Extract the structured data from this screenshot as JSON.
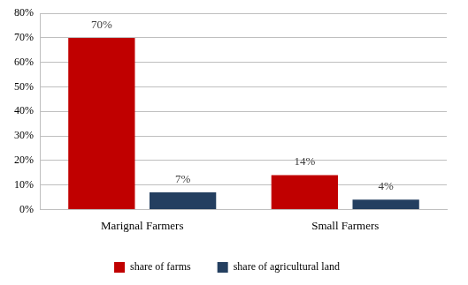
{
  "chart_data": {
    "type": "bar",
    "categories": [
      "Marignal Farmers",
      "Small Farmers"
    ],
    "series": [
      {
        "name": "share of farms",
        "color": "#c00000",
        "values": [
          70,
          14
        ],
        "value_labels": [
          "70%",
          "14%"
        ]
      },
      {
        "name": "share of agricultural land",
        "color": "#243f60",
        "values": [
          7,
          4
        ],
        "value_labels": [
          "7%",
          "4%"
        ]
      }
    ],
    "ylim": [
      0,
      80
    ],
    "yticks": [
      {
        "value": 0,
        "label": "0%"
      },
      {
        "value": 10,
        "label": "10%"
      },
      {
        "value": 20,
        "label": "20%"
      },
      {
        "value": 30,
        "label": "30%"
      },
      {
        "value": 40,
        "label": "40%"
      },
      {
        "value": 50,
        "label": "50%"
      },
      {
        "value": 60,
        "label": "60%"
      },
      {
        "value": 70,
        "label": "70%"
      },
      {
        "value": 80,
        "label": "80%"
      }
    ],
    "grid": true,
    "legend": "bottom",
    "data_labels": true
  }
}
